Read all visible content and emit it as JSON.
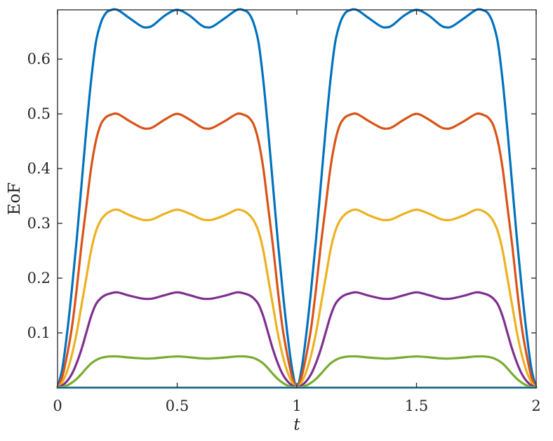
{
  "chart_data": {
    "type": "line",
    "title": "",
    "xlabel": "t",
    "ylabel": "EoF",
    "xlim": [
      0,
      2
    ],
    "ylim": [
      0,
      0.69
    ],
    "xticks": [
      0,
      0.5,
      1,
      1.5,
      2
    ],
    "xtick_labels": [
      "0",
      "0.5",
      "1",
      "1.5",
      "2"
    ],
    "yticks": [
      0.1,
      0.2,
      0.3,
      0.4,
      0.5,
      0.6
    ],
    "ytick_labels": [
      "0.1",
      "0.2",
      "0.3",
      "0.4",
      "0.5",
      "0.6"
    ],
    "grid": false,
    "legend": "none",
    "series": [
      {
        "color": "#0072BD",
        "x": [
          0,
          0.02,
          0.04,
          0.06,
          0.08,
          0.1,
          0.12,
          0.14,
          0.16,
          0.18,
          0.2,
          0.22,
          0.25,
          0.3,
          0.35,
          0.375,
          0.4,
          0.45,
          0.5,
          0.55,
          0.6,
          0.625,
          0.65,
          0.7,
          0.75,
          0.78,
          0.8,
          0.82,
          0.84,
          0.86,
          0.88,
          0.9,
          0.92,
          0.94,
          0.96,
          0.98,
          1.0,
          1.02,
          1.04,
          1.06,
          1.08,
          1.1,
          1.12,
          1.14,
          1.16,
          1.18,
          1.2,
          1.22,
          1.25,
          1.3,
          1.35,
          1.375,
          1.4,
          1.45,
          1.5,
          1.55,
          1.6,
          1.625,
          1.65,
          1.7,
          1.75,
          1.78,
          1.8,
          1.82,
          1.84,
          1.86,
          1.88,
          1.9,
          1.92,
          1.94,
          1.96,
          1.98,
          2.0
        ],
        "y": [
          0,
          0.035,
          0.1,
          0.18,
          0.27,
          0.37,
          0.47,
          0.56,
          0.63,
          0.665,
          0.683,
          0.689,
          0.69,
          0.675,
          0.66,
          0.658,
          0.662,
          0.68,
          0.69,
          0.68,
          0.662,
          0.658,
          0.66,
          0.675,
          0.69,
          0.689,
          0.683,
          0.665,
          0.63,
          0.56,
          0.47,
          0.37,
          0.27,
          0.18,
          0.1,
          0.035,
          0,
          0.035,
          0.1,
          0.18,
          0.27,
          0.37,
          0.47,
          0.56,
          0.63,
          0.665,
          0.683,
          0.689,
          0.69,
          0.675,
          0.66,
          0.658,
          0.662,
          0.68,
          0.69,
          0.68,
          0.662,
          0.658,
          0.66,
          0.675,
          0.69,
          0.689,
          0.683,
          0.665,
          0.63,
          0.56,
          0.47,
          0.37,
          0.27,
          0.18,
          0.1,
          0.035,
          0
        ]
      },
      {
        "color": "#D95319",
        "x": [
          0,
          0.02,
          0.04,
          0.06,
          0.08,
          0.1,
          0.12,
          0.14,
          0.16,
          0.18,
          0.2,
          0.22,
          0.25,
          0.3,
          0.35,
          0.375,
          0.4,
          0.45,
          0.5,
          0.55,
          0.6,
          0.625,
          0.65,
          0.7,
          0.75,
          0.78,
          0.8,
          0.82,
          0.84,
          0.86,
          0.88,
          0.9,
          0.92,
          0.94,
          0.96,
          0.98,
          1.0,
          1.02,
          1.04,
          1.06,
          1.08,
          1.1,
          1.12,
          1.14,
          1.16,
          1.18,
          1.2,
          1.22,
          1.25,
          1.3,
          1.35,
          1.375,
          1.4,
          1.45,
          1.5,
          1.55,
          1.6,
          1.625,
          1.65,
          1.7,
          1.75,
          1.78,
          1.8,
          1.82,
          1.84,
          1.86,
          1.88,
          1.9,
          1.92,
          1.94,
          1.96,
          1.98,
          2.0
        ],
        "y": [
          0,
          0.02,
          0.06,
          0.11,
          0.18,
          0.26,
          0.33,
          0.4,
          0.45,
          0.48,
          0.493,
          0.498,
          0.5,
          0.487,
          0.475,
          0.473,
          0.476,
          0.49,
          0.5,
          0.49,
          0.476,
          0.473,
          0.475,
          0.487,
          0.5,
          0.498,
          0.493,
          0.48,
          0.45,
          0.4,
          0.33,
          0.26,
          0.18,
          0.11,
          0.06,
          0.02,
          0,
          0.02,
          0.06,
          0.11,
          0.18,
          0.26,
          0.33,
          0.4,
          0.45,
          0.48,
          0.493,
          0.498,
          0.5,
          0.487,
          0.475,
          0.473,
          0.476,
          0.49,
          0.5,
          0.49,
          0.476,
          0.473,
          0.475,
          0.487,
          0.5,
          0.498,
          0.493,
          0.48,
          0.45,
          0.4,
          0.33,
          0.26,
          0.18,
          0.11,
          0.06,
          0.02,
          0
        ]
      },
      {
        "color": "#EDB120",
        "x": [
          0,
          0.02,
          0.04,
          0.06,
          0.08,
          0.1,
          0.12,
          0.14,
          0.16,
          0.18,
          0.2,
          0.22,
          0.25,
          0.3,
          0.35,
          0.375,
          0.4,
          0.45,
          0.5,
          0.55,
          0.6,
          0.625,
          0.65,
          0.7,
          0.75,
          0.78,
          0.8,
          0.82,
          0.84,
          0.86,
          0.88,
          0.9,
          0.92,
          0.94,
          0.96,
          0.98,
          1.0,
          1.02,
          1.04,
          1.06,
          1.08,
          1.1,
          1.12,
          1.14,
          1.16,
          1.18,
          1.2,
          1.22,
          1.25,
          1.3,
          1.35,
          1.375,
          1.4,
          1.45,
          1.5,
          1.55,
          1.6,
          1.625,
          1.65,
          1.7,
          1.75,
          1.78,
          1.8,
          1.82,
          1.84,
          1.86,
          1.88,
          1.9,
          1.92,
          1.94,
          1.96,
          1.98,
          2.0
        ],
        "y": [
          0,
          0.01,
          0.03,
          0.06,
          0.1,
          0.15,
          0.2,
          0.25,
          0.285,
          0.305,
          0.316,
          0.322,
          0.325,
          0.315,
          0.307,
          0.306,
          0.308,
          0.318,
          0.325,
          0.318,
          0.308,
          0.306,
          0.307,
          0.315,
          0.325,
          0.322,
          0.316,
          0.305,
          0.285,
          0.25,
          0.2,
          0.15,
          0.1,
          0.06,
          0.03,
          0.01,
          0,
          0.01,
          0.03,
          0.06,
          0.1,
          0.15,
          0.2,
          0.25,
          0.285,
          0.305,
          0.316,
          0.322,
          0.325,
          0.315,
          0.307,
          0.306,
          0.308,
          0.318,
          0.325,
          0.318,
          0.308,
          0.306,
          0.307,
          0.315,
          0.325,
          0.322,
          0.316,
          0.305,
          0.285,
          0.25,
          0.2,
          0.15,
          0.1,
          0.06,
          0.03,
          0.01,
          0
        ]
      },
      {
        "color": "#7E2F8E",
        "x": [
          0,
          0.02,
          0.04,
          0.06,
          0.08,
          0.1,
          0.12,
          0.14,
          0.16,
          0.18,
          0.2,
          0.22,
          0.25,
          0.3,
          0.35,
          0.375,
          0.4,
          0.45,
          0.5,
          0.55,
          0.6,
          0.625,
          0.65,
          0.7,
          0.75,
          0.78,
          0.8,
          0.82,
          0.84,
          0.86,
          0.88,
          0.9,
          0.92,
          0.94,
          0.96,
          0.98,
          1.0,
          1.02,
          1.04,
          1.06,
          1.08,
          1.1,
          1.12,
          1.14,
          1.16,
          1.18,
          1.2,
          1.22,
          1.25,
          1.3,
          1.35,
          1.375,
          1.4,
          1.45,
          1.5,
          1.55,
          1.6,
          1.625,
          1.65,
          1.7,
          1.75,
          1.78,
          1.8,
          1.82,
          1.84,
          1.86,
          1.88,
          1.9,
          1.92,
          1.94,
          1.96,
          1.98,
          2.0
        ],
        "y": [
          0,
          0.004,
          0.012,
          0.025,
          0.045,
          0.07,
          0.1,
          0.13,
          0.152,
          0.163,
          0.169,
          0.172,
          0.174,
          0.168,
          0.163,
          0.162,
          0.163,
          0.169,
          0.174,
          0.169,
          0.163,
          0.162,
          0.163,
          0.168,
          0.174,
          0.172,
          0.169,
          0.163,
          0.152,
          0.13,
          0.1,
          0.07,
          0.045,
          0.025,
          0.012,
          0.004,
          0,
          0.004,
          0.012,
          0.025,
          0.045,
          0.07,
          0.1,
          0.13,
          0.152,
          0.163,
          0.169,
          0.172,
          0.174,
          0.168,
          0.163,
          0.162,
          0.163,
          0.169,
          0.174,
          0.169,
          0.163,
          0.162,
          0.163,
          0.168,
          0.174,
          0.172,
          0.169,
          0.163,
          0.152,
          0.13,
          0.1,
          0.07,
          0.045,
          0.025,
          0.012,
          0.004,
          0
        ]
      },
      {
        "color": "#77AC30",
        "x": [
          0,
          0.02,
          0.04,
          0.06,
          0.08,
          0.1,
          0.12,
          0.14,
          0.16,
          0.18,
          0.2,
          0.22,
          0.25,
          0.3,
          0.35,
          0.375,
          0.4,
          0.45,
          0.5,
          0.55,
          0.6,
          0.625,
          0.65,
          0.7,
          0.75,
          0.78,
          0.8,
          0.82,
          0.84,
          0.86,
          0.88,
          0.9,
          0.92,
          0.94,
          0.96,
          0.98,
          1.0,
          1.02,
          1.04,
          1.06,
          1.08,
          1.1,
          1.12,
          1.14,
          1.16,
          1.18,
          1.2,
          1.22,
          1.25,
          1.3,
          1.35,
          1.375,
          1.4,
          1.45,
          1.5,
          1.55,
          1.6,
          1.625,
          1.65,
          1.7,
          1.75,
          1.78,
          1.8,
          1.82,
          1.84,
          1.86,
          1.88,
          1.9,
          1.92,
          1.94,
          1.96,
          1.98,
          2.0
        ],
        "y": [
          0,
          0.001,
          0.004,
          0.009,
          0.016,
          0.025,
          0.035,
          0.044,
          0.05,
          0.054,
          0.056,
          0.057,
          0.057,
          0.055,
          0.0535,
          0.053,
          0.0535,
          0.0555,
          0.057,
          0.0555,
          0.0535,
          0.053,
          0.0535,
          0.055,
          0.057,
          0.057,
          0.056,
          0.054,
          0.05,
          0.044,
          0.035,
          0.025,
          0.016,
          0.009,
          0.004,
          0.001,
          0,
          0.001,
          0.004,
          0.009,
          0.016,
          0.025,
          0.035,
          0.044,
          0.05,
          0.054,
          0.056,
          0.057,
          0.057,
          0.055,
          0.0535,
          0.053,
          0.0535,
          0.0555,
          0.057,
          0.0555,
          0.0535,
          0.053,
          0.0535,
          0.055,
          0.057,
          0.057,
          0.056,
          0.054,
          0.05,
          0.044,
          0.035,
          0.025,
          0.016,
          0.009,
          0.004,
          0.001,
          0
        ]
      },
      {
        "color": "#4DBEEE",
        "x": [
          0,
          2
        ],
        "y": [
          0,
          0
        ]
      }
    ]
  }
}
